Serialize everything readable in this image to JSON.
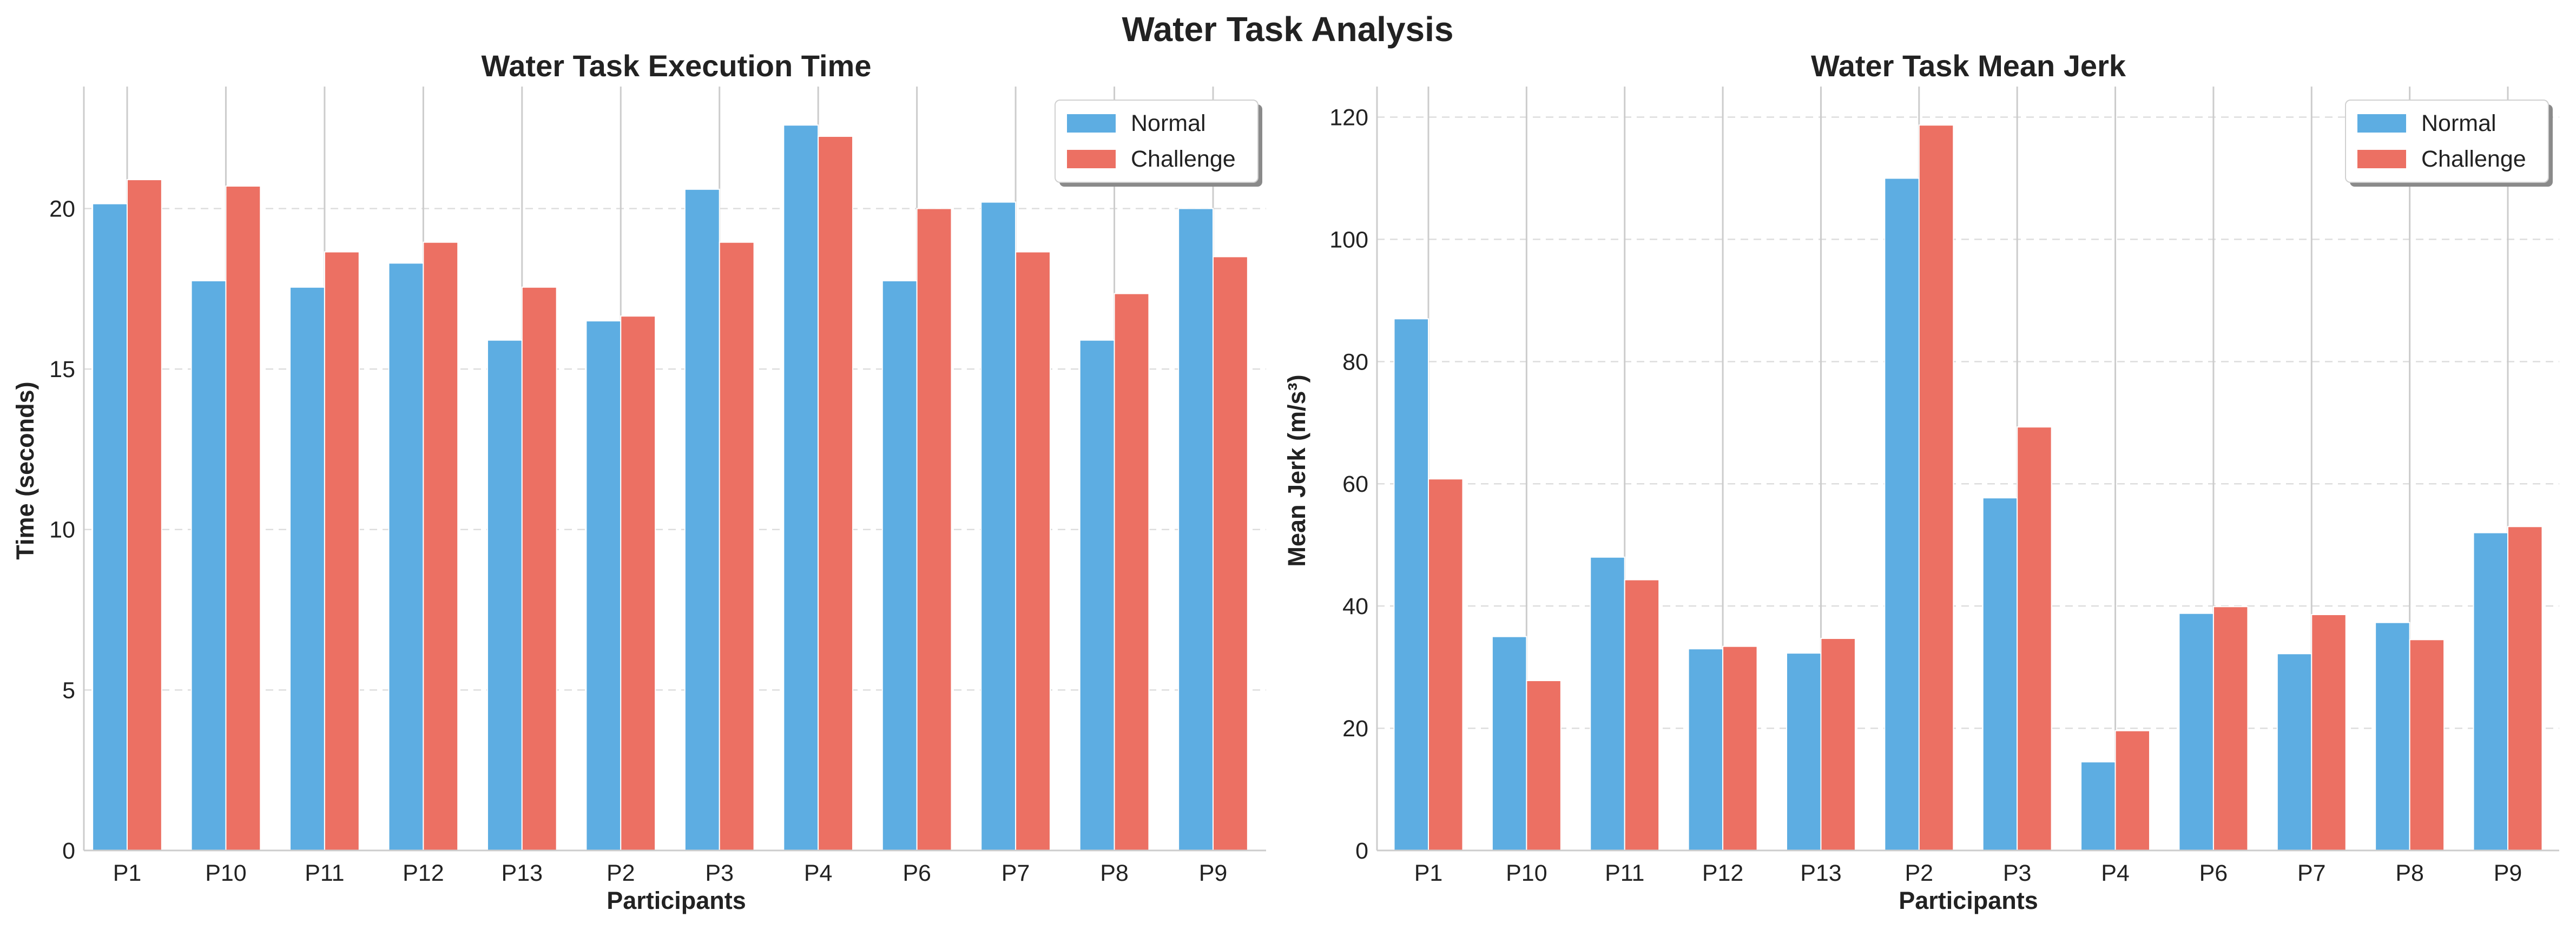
{
  "figure": {
    "title": "Water Task Analysis"
  },
  "colors": {
    "normal": "#5DADE2",
    "challenge": "#EC7063",
    "grid": "#dddddd",
    "vline": "#cccccc",
    "spine": "#cccccc"
  },
  "chart_data": [
    {
      "type": "bar",
      "title": "Water Task Execution Time",
      "xlabel": "Participants",
      "ylabel": "Time (seconds)",
      "categories": [
        "P1",
        "P10",
        "P11",
        "P12",
        "P13",
        "P2",
        "P3",
        "P4",
        "P6",
        "P7",
        "P8",
        "P9"
      ],
      "series": [
        {
          "name": "Normal",
          "values": [
            20.15,
            17.75,
            17.55,
            18.3,
            15.9,
            16.5,
            20.6,
            22.6,
            17.75,
            20.2,
            15.9,
            20.0
          ]
        },
        {
          "name": "Challenge",
          "values": [
            20.9,
            20.7,
            18.65,
            18.95,
            17.55,
            16.65,
            18.95,
            22.25,
            20.0,
            18.65,
            17.35,
            18.5
          ]
        }
      ],
      "ylim": [
        0,
        23.8
      ],
      "yticks": [
        0,
        5,
        10,
        15,
        20
      ],
      "grid": "y-dashed",
      "legend": "top-right"
    },
    {
      "type": "bar",
      "title": "Water Task Mean Jerk",
      "xlabel": "Participants",
      "ylabel": "Mean Jerk (m/s³)",
      "categories": [
        "P1",
        "P10",
        "P11",
        "P12",
        "P13",
        "P2",
        "P3",
        "P4",
        "P6",
        "P7",
        "P8",
        "P9"
      ],
      "series": [
        {
          "name": "Normal",
          "values": [
            87,
            35,
            48,
            33,
            32.3,
            110,
            57.7,
            14.5,
            38.8,
            32.2,
            37.3,
            52
          ]
        },
        {
          "name": "Challenge",
          "values": [
            60.8,
            27.8,
            44.3,
            33.4,
            34.7,
            118.7,
            69.3,
            19.6,
            39.9,
            38.6,
            34.5,
            53
          ]
        }
      ],
      "ylim": [
        0,
        125
      ],
      "yticks": [
        0,
        20,
        40,
        60,
        80,
        100,
        120
      ],
      "grid": "y-dashed",
      "legend": "top-right"
    }
  ]
}
